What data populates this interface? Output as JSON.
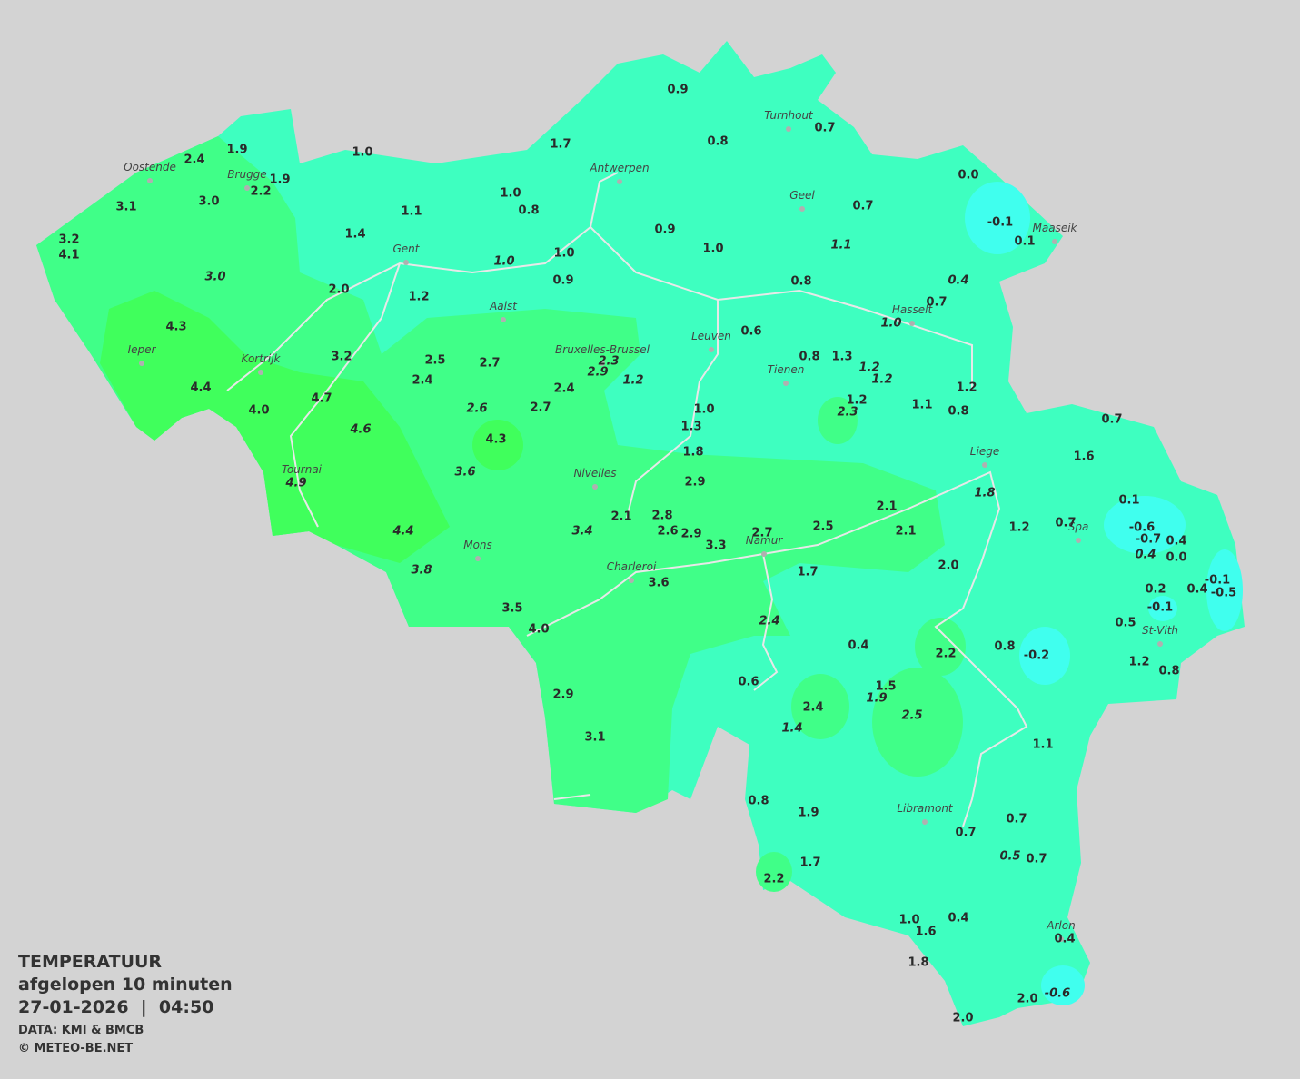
{
  "legend": {
    "title": "TEMPERATUUR",
    "subtitle": "afgelopen 10 minuten",
    "datetime": "27-01-2026  |  04:50",
    "source": "DATA: KMI & BMCB",
    "credit": "© METEO-BE.NET"
  },
  "cities": [
    "Oostende",
    "Brugge",
    "Antwerpen",
    "Turnhout",
    "Geel",
    "Maaseik",
    "Gent",
    "Aalst",
    "Hasselt",
    "Leuven",
    "Bruxelles-Brussel",
    "Ieper",
    "Kortrijk",
    "Tienen",
    "Liege",
    "Nivelles",
    "Tournai",
    "Spa",
    "Mons",
    "Namur",
    "Charleroi",
    "St-Vith",
    "Libramont",
    "Arlon"
  ],
  "readings": [
    "0.9",
    "0.8",
    "0.7",
    "1.7",
    "1.9",
    "1.0",
    "2.4",
    "1.9",
    "2.2",
    "3.1",
    "3.0",
    "1.0",
    "0.8",
    "1.1",
    "0.0",
    "-0.1",
    "0.1",
    "0.7",
    "0.9",
    "1.0",
    "1.1",
    "1.4",
    "3.2",
    "4.1",
    "1.0",
    "1.0",
    "0.9",
    "3.0",
    "2.0",
    "1.2",
    "0.8",
    "0.4",
    "0.7",
    "1.0",
    "4.3",
    "0.6",
    "3.2",
    "2.5",
    "2.7",
    "2.3",
    "2.9",
    "1.2",
    "0.8",
    "1.3",
    "1.2",
    "1.2",
    "2.4",
    "4.4",
    "2.4",
    "1.2",
    "1.1",
    "1.2",
    "0.8",
    "0.7",
    "4.7",
    "4.0",
    "2.6",
    "2.7",
    "1.0",
    "2.3",
    "1.3",
    "4.6",
    "4.3",
    "1.8",
    "1.6",
    "3.6",
    "2.9",
    "4.9",
    "1.8",
    "0.1",
    "2.1",
    "2.1",
    "2.8",
    "2.6",
    "2.9",
    "3.4",
    "2.7",
    "2.5",
    "2.1",
    "4.4",
    "1.2",
    "0.7",
    "-0.6",
    "-0.7",
    "0.4",
    "0.4",
    "0.0",
    "3.3",
    "3.8",
    "2.0",
    "1.7",
    "3.6",
    "-0.1",
    "0.2",
    "0.4",
    "-0.5",
    "-0.1",
    "3.5",
    "2.4",
    "4.0",
    "0.5",
    "0.4",
    "2.2",
    "0.8",
    "-0.2",
    "1.2",
    "0.8",
    "0.6",
    "1.5",
    "1.9",
    "2.9",
    "2.4",
    "2.5",
    "1.4",
    "3.1",
    "1.1",
    "0.8",
    "1.9",
    "0.7",
    "0.7",
    "0.5",
    "0.7",
    "1.7",
    "2.2",
    "1.0",
    "1.6",
    "0.4",
    "0.4",
    "1.8",
    "2.0",
    "-0.6",
    "2.0"
  ]
}
